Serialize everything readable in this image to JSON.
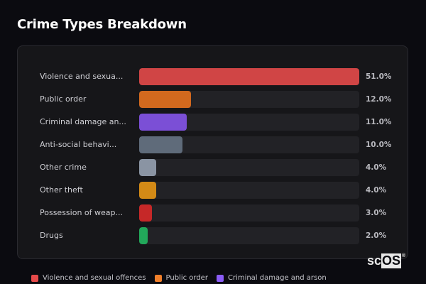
{
  "title": "Crime Types Breakdown",
  "chart_data": {
    "type": "bar",
    "orientation": "horizontal",
    "title": "Crime Types Breakdown",
    "categories": [
      "Violence and sexual offences",
      "Public order",
      "Criminal damage and arson",
      "Anti-social behaviour",
      "Other crime",
      "Other theft",
      "Possession of weapons",
      "Drugs"
    ],
    "display_labels": [
      "Violence and sexua...",
      "Public order",
      "Criminal damage an...",
      "Anti-social behavi...",
      "Other crime",
      "Other theft",
      "Possession of weap...",
      "Drugs"
    ],
    "values": [
      51.0,
      12.0,
      11.0,
      10.0,
      4.0,
      4.0,
      3.0,
      2.0
    ],
    "value_labels": [
      "51.0%",
      "12.0%",
      "11.0%",
      "10.0%",
      "4.0%",
      "4.0%",
      "3.0%",
      "2.0%"
    ],
    "colors": [
      "#d04545",
      "#d2691e",
      "#7b4fd6",
      "#5f6b7a",
      "#8a94a3",
      "#d38a16",
      "#c62828",
      "#22a85a"
    ],
    "xlim": [
      0,
      51
    ],
    "xlabel": "",
    "ylabel": "",
    "grid": false,
    "legend_position": "bottom",
    "legend": [
      {
        "label": "Violence and sexual offences",
        "color": "#e64a4a"
      },
      {
        "label": "Public order",
        "color": "#f07f2a"
      },
      {
        "label": "Criminal damage and arson",
        "color": "#8b5cf6"
      }
    ]
  },
  "watermark": {
    "sc": "sc",
    "os": "OS",
    "reg": "®"
  }
}
